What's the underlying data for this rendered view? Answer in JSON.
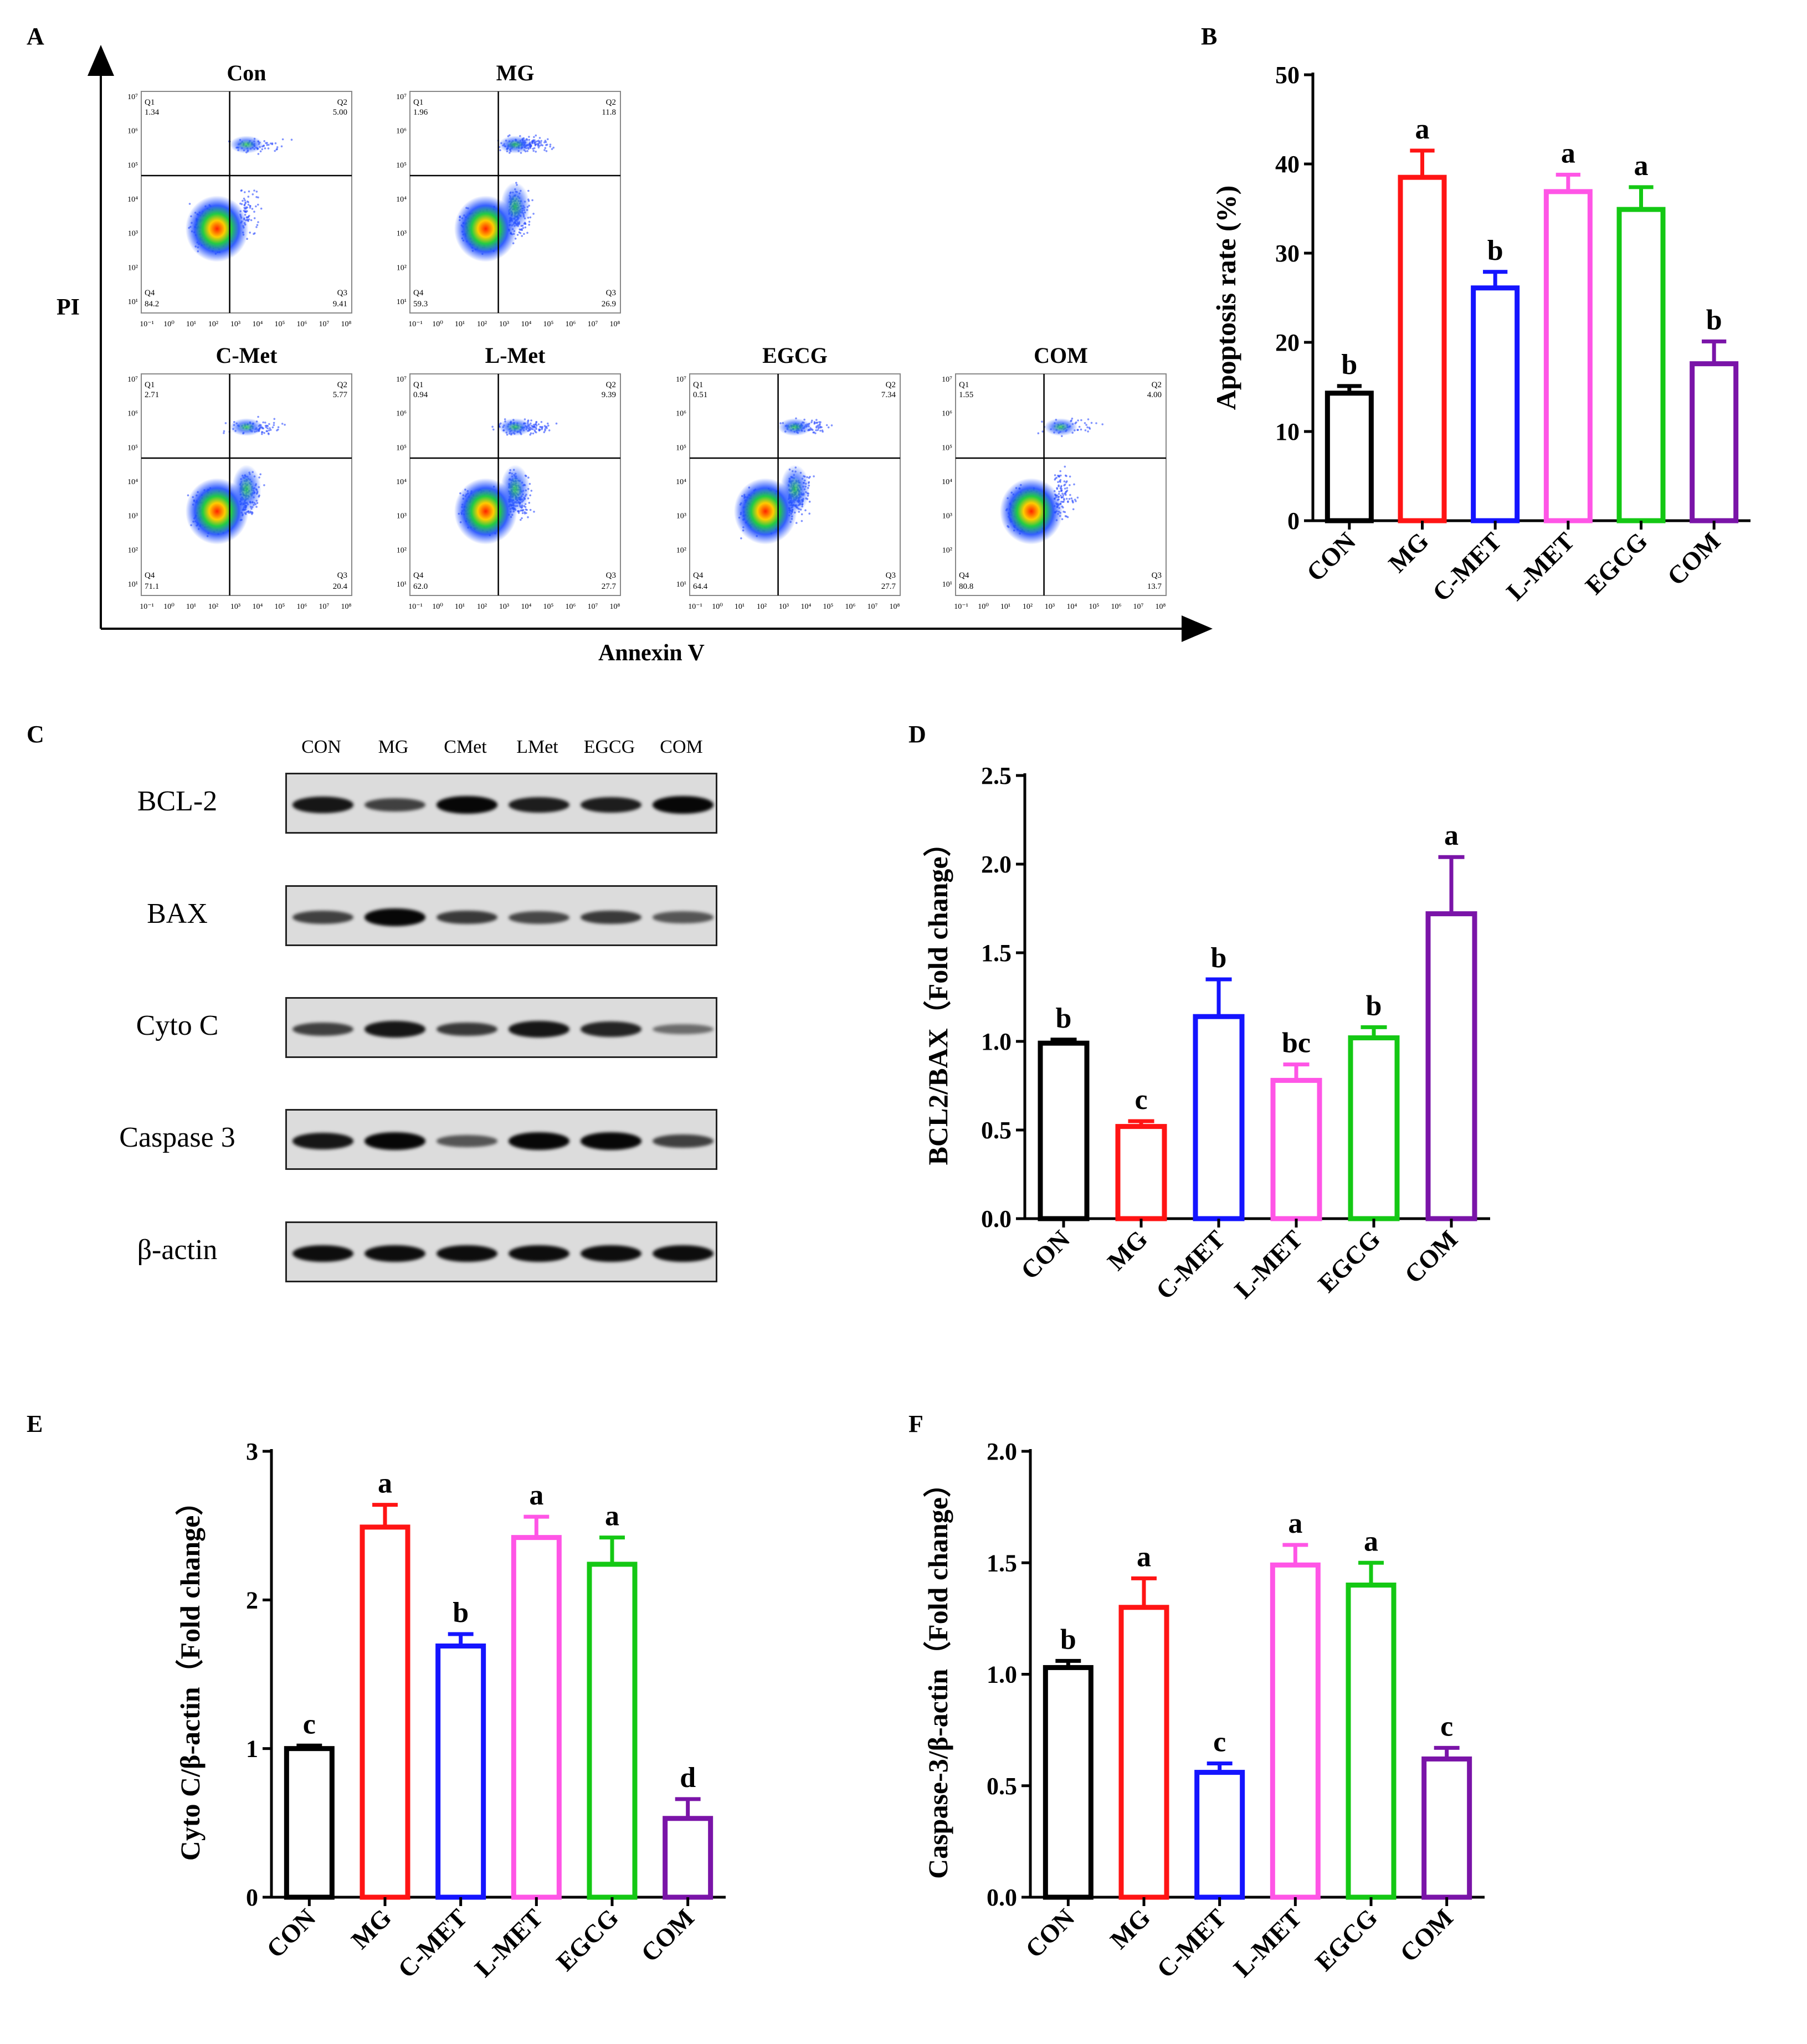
{
  "colors": {
    "groups": [
      "#000000",
      "#ff1414",
      "#1414ff",
      "#ff55e6",
      "#14c814",
      "#7a14a8"
    ],
    "axis": "#000000",
    "quadrant_line": "#000000"
  },
  "panel_letters": [
    "A",
    "B",
    "C",
    "D",
    "E",
    "F"
  ],
  "panel_a": {
    "y_axis_label": "PI",
    "x_axis_label": "Annexin V",
    "x_ticks": [
      "10⁻¹",
      "10⁰",
      "10¹",
      "10²",
      "10³",
      "10⁴",
      "10⁵",
      "10⁶",
      "10⁷",
      "10⁸"
    ],
    "y_ticks": [
      "10⁷",
      "10⁶",
      "10⁵",
      "10⁴",
      "10³",
      "10²",
      "10¹"
    ],
    "plots": [
      {
        "title": "Con",
        "q1_label": "Q1",
        "q1": "1.34",
        "q2_label": "Q2",
        "q2": "5.00",
        "q3_label": "Q3",
        "q3": "9.41",
        "q4_label": "Q4",
        "q4": "84.2"
      },
      {
        "title": "MG",
        "q1_label": "Q1",
        "q1": "1.96",
        "q2_label": "Q2",
        "q2": "11.8",
        "q3_label": "Q3",
        "q3": "26.9",
        "q4_label": "Q4",
        "q4": "59.3"
      },
      {
        "title": "C-Met",
        "q1_label": "Q1",
        "q1": "2.71",
        "q2_label": "Q2",
        "q2": "5.77",
        "q3_label": "Q3",
        "q3": "20.4",
        "q4_label": "Q4",
        "q4": "71.1"
      },
      {
        "title": "L-Met",
        "q1_label": "Q1",
        "q1": "0.94",
        "q2_label": "Q2",
        "q2": "9.39",
        "q3_label": "Q3",
        "q3": "27.7",
        "q4_label": "Q4",
        "q4": "62.0"
      },
      {
        "title": "EGCG",
        "q1_label": "Q1",
        "q1": "0.51",
        "q2_label": "Q2",
        "q2": "7.34",
        "q3_label": "Q3",
        "q3": "27.7",
        "q4_label": "Q4",
        "q4": "64.4"
      },
      {
        "title": "COM",
        "q1_label": "Q1",
        "q1": "1.55",
        "q2_label": "Q2",
        "q2": "4.00",
        "q3_label": "Q3",
        "q3": "13.7",
        "q4_label": "Q4",
        "q4": "80.8"
      }
    ]
  },
  "panel_c": {
    "lane_labels": [
      "CON",
      "MG",
      "CMet",
      "LMet",
      "EGCG",
      "COM"
    ],
    "blots": [
      {
        "label": "BCL-2",
        "intensities": [
          0.85,
          0.55,
          0.95,
          0.8,
          0.8,
          0.95
        ]
      },
      {
        "label": "BAX",
        "intensities": [
          0.55,
          0.95,
          0.6,
          0.5,
          0.6,
          0.4
        ]
      },
      {
        "label": "Cyto C",
        "intensities": [
          0.55,
          0.85,
          0.6,
          0.85,
          0.75,
          0.25
        ]
      },
      {
        "label": "Caspase 3",
        "intensities": [
          0.85,
          0.95,
          0.4,
          0.95,
          0.95,
          0.55
        ]
      },
      {
        "label": "β-actin",
        "intensities": [
          0.9,
          0.9,
          0.9,
          0.9,
          0.9,
          0.9
        ]
      }
    ]
  },
  "chart_data": [
    {
      "id": "B",
      "type": "bar",
      "categories": [
        "CON",
        "MG",
        "C-MET",
        "L-MET",
        "EGCG",
        "COM"
      ],
      "values": [
        14.3,
        38.5,
        26.1,
        36.9,
        34.9,
        17.6
      ],
      "errors": [
        0.8,
        3.0,
        1.8,
        1.9,
        2.5,
        2.5
      ],
      "sig_letters": [
        "b",
        "a",
        "b",
        "a",
        "a",
        "b"
      ],
      "ylabel": "Apoptosis rate (%)",
      "ylim": [
        0,
        50
      ],
      "yticks": [
        "0",
        "10",
        "20",
        "30",
        "40",
        "50"
      ],
      "ytick_values": [
        0,
        10,
        20,
        30,
        40,
        50
      ]
    },
    {
      "id": "D",
      "type": "bar",
      "categories": [
        "CON",
        "MG",
        "C-MET",
        "L-MET",
        "EGCG",
        "COM"
      ],
      "values": [
        0.99,
        0.52,
        1.14,
        0.78,
        1.02,
        1.72
      ],
      "errors": [
        0.02,
        0.03,
        0.21,
        0.09,
        0.06,
        0.32
      ],
      "sig_letters": [
        "b",
        "c",
        "b",
        "bc",
        "b",
        "a"
      ],
      "ylabel": "BCL2/BAX（Fold change）",
      "ylim": [
        0,
        2.5
      ],
      "yticks": [
        "0.0",
        "0.5",
        "1.0",
        "1.5",
        "2.0",
        "2.5"
      ],
      "ytick_values": [
        0,
        0.5,
        1.0,
        1.5,
        2.0,
        2.5
      ]
    },
    {
      "id": "E",
      "type": "bar",
      "categories": [
        "CON",
        "MG",
        "C-MET",
        "L-MET",
        "EGCG",
        "COM"
      ],
      "values": [
        1.0,
        2.49,
        1.69,
        2.42,
        2.24,
        0.53
      ],
      "errors": [
        0.02,
        0.15,
        0.08,
        0.14,
        0.18,
        0.13
      ],
      "sig_letters": [
        "c",
        "a",
        "b",
        "a",
        "a",
        "d"
      ],
      "ylabel": "Cyto C/β-actin（Fold change）",
      "ylim": [
        0,
        3
      ],
      "yticks": [
        "0",
        "1",
        "2",
        "3"
      ],
      "ytick_values": [
        0,
        1,
        2,
        3
      ]
    },
    {
      "id": "F",
      "type": "bar",
      "categories": [
        "CON",
        "MG",
        "C-MET",
        "L-MET",
        "EGCG",
        "COM"
      ],
      "values": [
        1.03,
        1.3,
        0.56,
        1.49,
        1.4,
        0.62
      ],
      "errors": [
        0.03,
        0.13,
        0.04,
        0.09,
        0.1,
        0.05
      ],
      "sig_letters": [
        "b",
        "a",
        "c",
        "a",
        "a",
        "c"
      ],
      "ylabel": "Caspase-3/β-actin（Fold change）",
      "ylim": [
        0,
        2.0
      ],
      "yticks": [
        "0.0",
        "0.5",
        "1.0",
        "1.5",
        "2.0"
      ],
      "ytick_values": [
        0,
        0.5,
        1.0,
        1.5,
        2.0
      ]
    }
  ]
}
